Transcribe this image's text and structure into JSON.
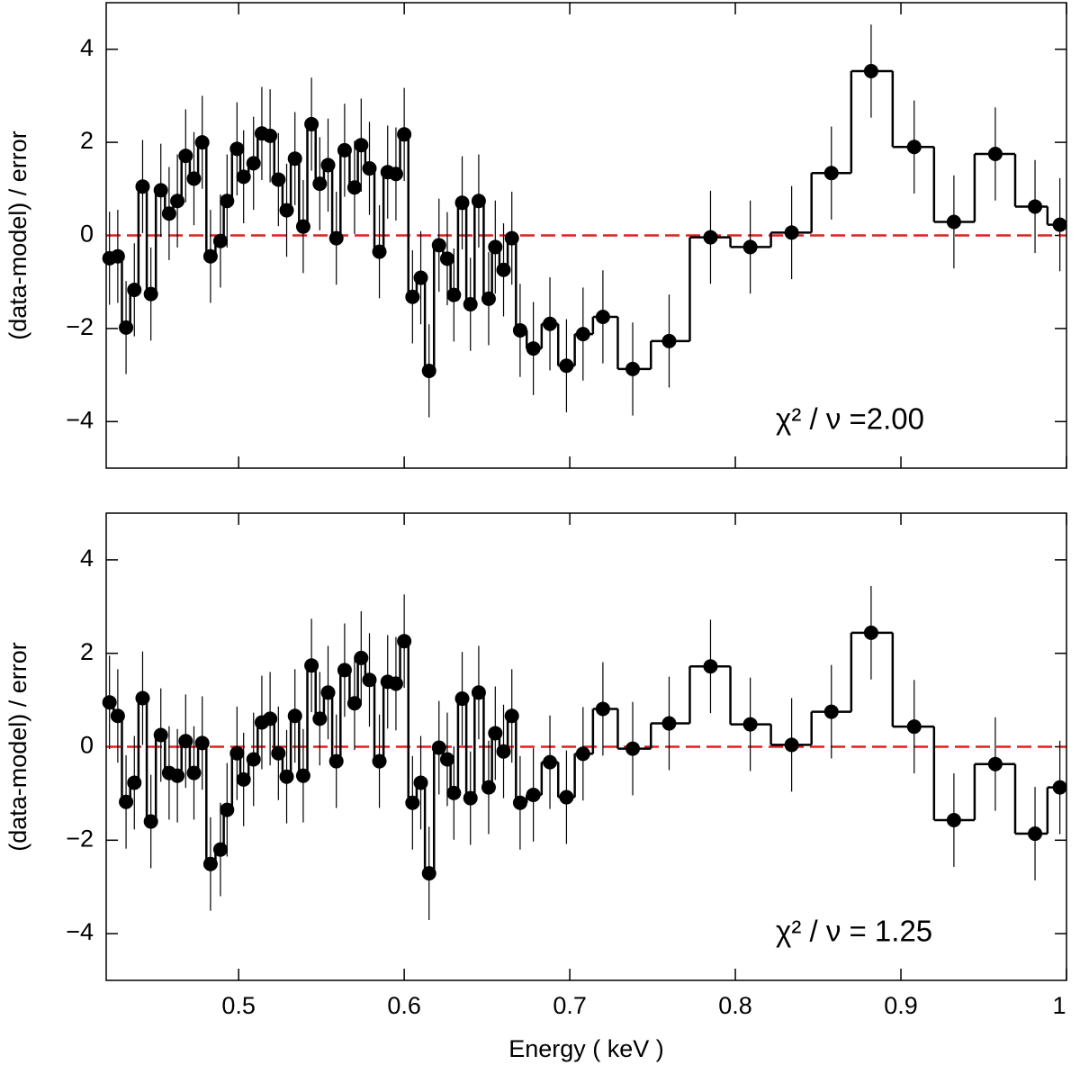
{
  "chart_data": [
    {
      "type": "residual-step",
      "ylabel": "(data-model) / error",
      "annotation": "χ² / ν =2.00",
      "xlim": [
        0.42,
        1.0
      ],
      "ylim": [
        -5,
        5
      ],
      "xticks": [
        0.5,
        0.6,
        0.7,
        0.8,
        0.9,
        1
      ],
      "show_xtick_labels": false,
      "yticks": [
        {
          "value": -4,
          "label": "−4"
        },
        {
          "value": -2,
          "label": "−2"
        },
        0,
        2,
        4
      ],
      "color": "#000000",
      "ref_line": 0,
      "ref_color": "#e02020",
      "yerr": 1,
      "x": [
        0.422,
        0.427,
        0.432,
        0.437,
        0.442,
        0.447,
        0.453,
        0.458,
        0.463,
        0.468,
        0.473,
        0.478,
        0.483,
        0.489,
        0.493,
        0.499,
        0.503,
        0.509,
        0.514,
        0.519,
        0.524,
        0.529,
        0.534,
        0.539,
        0.544,
        0.549,
        0.554,
        0.559,
        0.564,
        0.57,
        0.574,
        0.579,
        0.585,
        0.59,
        0.595,
        0.6,
        0.605,
        0.61,
        0.615,
        0.621,
        0.626,
        0.63,
        0.635,
        0.64,
        0.645,
        0.651,
        0.655,
        0.66,
        0.665,
        0.67,
        0.678,
        0.688,
        0.698,
        0.708,
        0.72,
        0.738,
        0.76,
        0.785,
        0.809,
        0.834,
        0.858,
        0.882,
        0.908,
        0.932,
        0.957,
        0.981,
        0.996
      ],
      "values": [
        -0.49,
        -0.45,
        -1.98,
        -1.17,
        1.05,
        -1.26,
        0.97,
        0.47,
        0.74,
        1.71,
        1.22,
        2.0,
        -0.45,
        -0.12,
        0.74,
        1.86,
        1.26,
        1.55,
        2.19,
        2.14,
        1.2,
        0.54,
        1.65,
        0.19,
        2.39,
        1.11,
        1.51,
        -0.06,
        1.83,
        1.03,
        1.94,
        1.44,
        -0.35,
        1.36,
        1.32,
        2.17,
        -1.32,
        -0.91,
        -2.91,
        -0.21,
        -0.5,
        -1.28,
        0.7,
        -1.48,
        0.74,
        -1.36,
        -0.25,
        -0.74,
        -0.06,
        -2.04,
        -2.43,
        -1.9,
        -2.8,
        -2.12,
        -1.75,
        -2.87,
        -2.27,
        -0.04,
        -0.25,
        0.06,
        1.34,
        3.53,
        1.9,
        0.29,
        1.75,
        0.62,
        0.23
      ]
    },
    {
      "type": "residual-step",
      "ylabel": "(data-model) / error",
      "xlabel": "Energy ( keV )",
      "annotation": "χ² / ν = 1.25",
      "xlim": [
        0.42,
        1.0
      ],
      "ylim": [
        -5,
        5
      ],
      "xticks": [
        0.5,
        0.6,
        0.7,
        0.8,
        0.9,
        1
      ],
      "show_xtick_labels": true,
      "yticks": [
        {
          "value": -4,
          "label": "−4"
        },
        {
          "value": -2,
          "label": "−2"
        },
        0,
        2,
        4
      ],
      "color": "#000000",
      "ref_line": 0,
      "ref_color": "#e02020",
      "yerr": 1,
      "x": [
        0.422,
        0.427,
        0.432,
        0.437,
        0.442,
        0.447,
        0.453,
        0.458,
        0.463,
        0.468,
        0.473,
        0.478,
        0.483,
        0.489,
        0.493,
        0.499,
        0.503,
        0.509,
        0.514,
        0.519,
        0.524,
        0.529,
        0.534,
        0.539,
        0.544,
        0.549,
        0.554,
        0.559,
        0.564,
        0.57,
        0.574,
        0.579,
        0.585,
        0.59,
        0.595,
        0.6,
        0.605,
        0.61,
        0.615,
        0.621,
        0.626,
        0.63,
        0.635,
        0.64,
        0.645,
        0.651,
        0.655,
        0.66,
        0.665,
        0.67,
        0.678,
        0.688,
        0.698,
        0.708,
        0.72,
        0.738,
        0.76,
        0.785,
        0.809,
        0.834,
        0.858,
        0.882,
        0.908,
        0.932,
        0.957,
        0.981,
        0.996
      ],
      "values": [
        0.95,
        0.66,
        -1.18,
        -0.77,
        1.04,
        -1.6,
        0.25,
        -0.56,
        -0.62,
        0.12,
        -0.56,
        0.08,
        -2.51,
        -2.2,
        -1.35,
        -0.14,
        -0.7,
        -0.27,
        0.52,
        0.6,
        -0.14,
        -0.64,
        0.66,
        -0.62,
        1.74,
        0.6,
        1.16,
        -0.31,
        1.64,
        0.93,
        1.9,
        1.43,
        -0.31,
        1.39,
        1.35,
        2.26,
        -1.2,
        -0.77,
        -2.71,
        -0.02,
        -0.27,
        -0.99,
        1.03,
        -1.1,
        1.16,
        -0.87,
        0.29,
        -0.1,
        0.66,
        -1.2,
        -1.03,
        -0.33,
        -1.08,
        -0.15,
        0.81,
        -0.04,
        0.5,
        1.72,
        0.48,
        0.04,
        0.75,
        2.44,
        0.43,
        -1.57,
        -0.37,
        -1.86,
        -0.87
      ]
    }
  ]
}
